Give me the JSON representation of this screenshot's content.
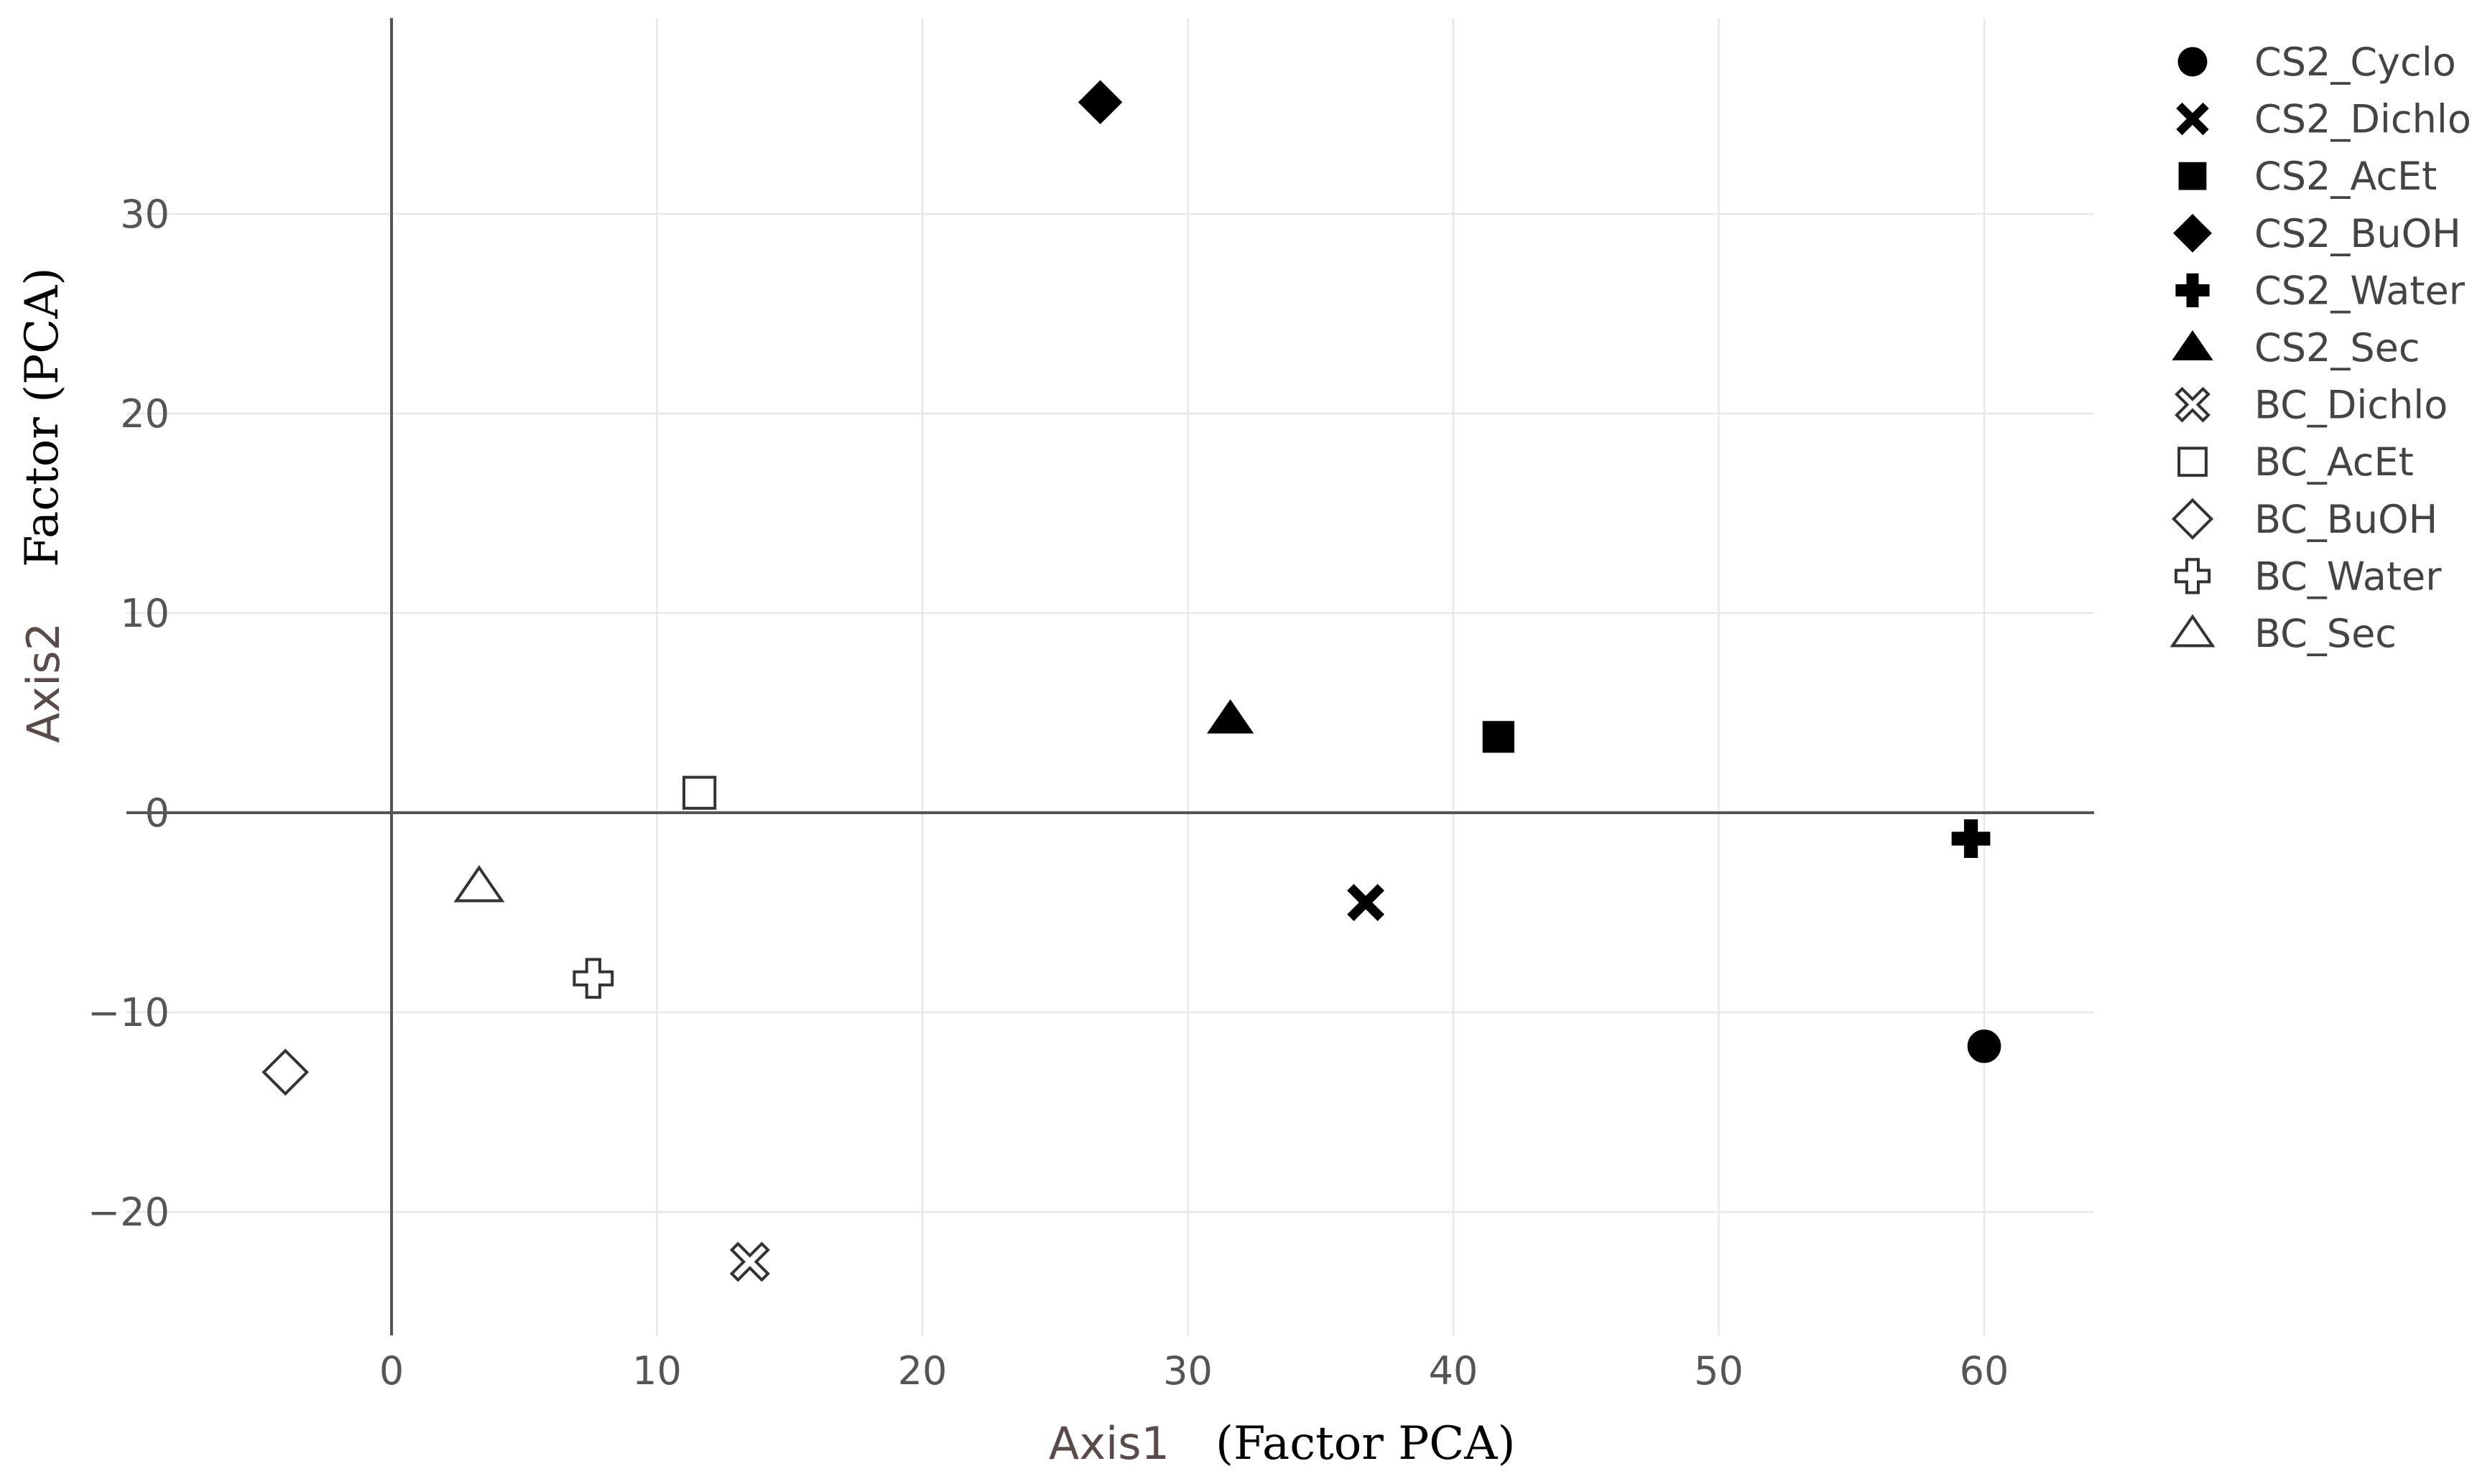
{
  "chart_data": {
    "type": "scatter",
    "x_axis": {
      "label": "Axis1",
      "label_suffix": "(Factor PCA)",
      "range": [
        -10,
        64.5
      ],
      "ticks": [
        0,
        10,
        20,
        30,
        40,
        50,
        60
      ],
      "tick_labels": [
        "0",
        "10",
        "20",
        "30",
        "40",
        "50",
        "60"
      ]
    },
    "y_axis": {
      "label": "Axis2",
      "label_suffix": "Factor (PCA)",
      "range": [
        -26,
        40
      ],
      "ticks": [
        -20,
        -10,
        0,
        10,
        20,
        30
      ],
      "tick_labels": [
        "−20",
        "−10",
        "0",
        "10",
        "20",
        "30"
      ]
    },
    "grid": true,
    "zero_lines": true,
    "legend_position": "right",
    "series": [
      {
        "name": "CS2_Cyclo",
        "symbol": "circle",
        "filled": true,
        "x": 60.0,
        "y": -11.7
      },
      {
        "name": "CS2_Dichlo",
        "symbol": "x",
        "filled": true,
        "x": 36.7,
        "y": -4.5
      },
      {
        "name": "CS2_AcEt",
        "symbol": "square",
        "filled": true,
        "x": 41.7,
        "y": 3.8
      },
      {
        "name": "CS2_BuOH",
        "symbol": "diamond",
        "filled": true,
        "x": 26.7,
        "y": 35.6
      },
      {
        "name": "CS2_Water",
        "symbol": "cross",
        "filled": true,
        "x": 59.5,
        "y": -1.3
      },
      {
        "name": "CS2_Sec",
        "symbol": "triangle-up",
        "filled": true,
        "x": 31.6,
        "y": 4.7
      },
      {
        "name": "BC_Dichlo",
        "symbol": "x",
        "filled": false,
        "x": 13.5,
        "y": -22.5
      },
      {
        "name": "BC_AcEt",
        "symbol": "square",
        "filled": false,
        "x": 11.6,
        "y": 1.0
      },
      {
        "name": "BC_BuOH",
        "symbol": "diamond",
        "filled": false,
        "x": -4.0,
        "y": -13.0
      },
      {
        "name": "BC_Water",
        "symbol": "cross",
        "filled": false,
        "x": 7.6,
        "y": -8.3
      },
      {
        "name": "BC_Sec",
        "symbol": "triangle-up",
        "filled": false,
        "x": 3.3,
        "y": -3.7
      }
    ]
  }
}
